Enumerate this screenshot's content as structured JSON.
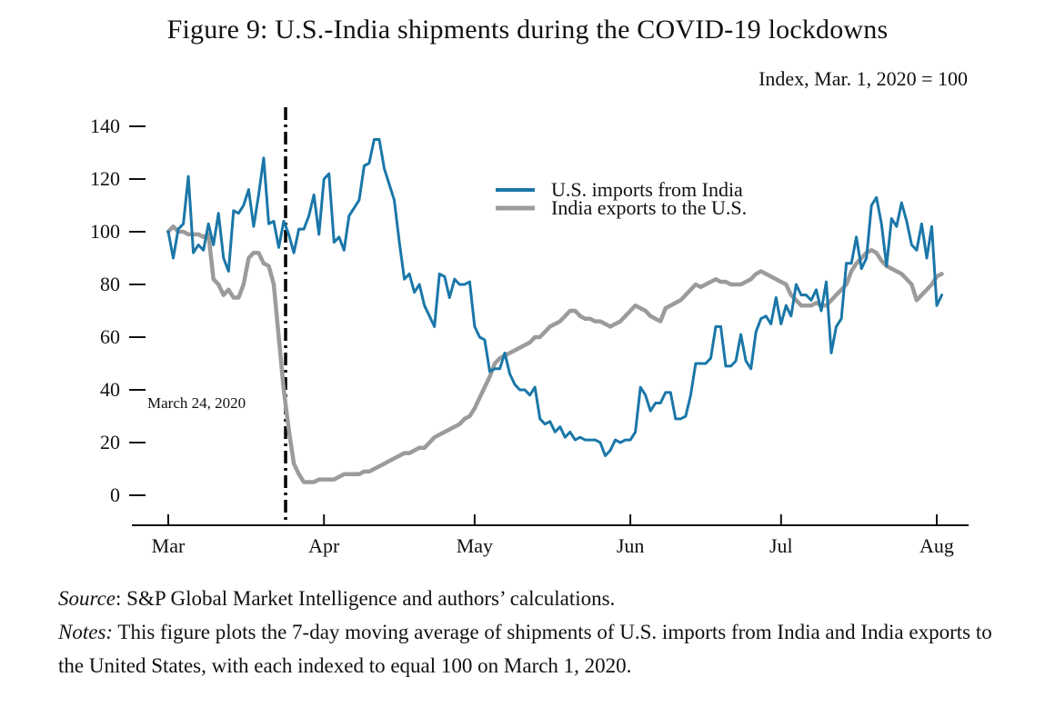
{
  "title": "Figure 9: U.S.-India shipments during the COVID-19 lockdowns",
  "subtitle": "Index, Mar. 1, 2020 = 100",
  "source_label": "Source",
  "source_text": ": S&P Global Market Intelligence and authors’ calculations.",
  "notes_label": "Notes:",
  "notes_text": " This figure plots the 7-day moving average of shipments of U.S. imports from India and India exports to the United States, with each indexed to equal 100 on March 1, 2020.",
  "colors": {
    "imports": "#1a77a8",
    "exports": "#9b9b9b",
    "axis": "#111111"
  },
  "chart_data": {
    "type": "line",
    "title": "Figure 9: U.S.-India shipments during the COVID-19 lockdowns",
    "subtitle": "Index, Mar. 1, 2020 = 100",
    "xlabel": "",
    "ylabel": "",
    "x_start": "2020-03-01",
    "x_ticks": [
      {
        "label": "Mar",
        "day": 0
      },
      {
        "label": "Apr",
        "day": 31
      },
      {
        "label": "May",
        "day": 61
      },
      {
        "label": "Jun",
        "day": 92
      },
      {
        "label": "Jul",
        "day": 122
      },
      {
        "label": "Aug",
        "day": 153
      }
    ],
    "xlim": [
      0,
      153
    ],
    "ylim": [
      0,
      140
    ],
    "yticks": [
      0,
      20,
      40,
      60,
      80,
      100,
      120,
      140
    ],
    "vline": {
      "day": 23,
      "label": "March 24, 2020"
    },
    "legend_position": "upper-center",
    "series": [
      {
        "name": "U.S. imports from India",
        "color": "#1a77a8",
        "values": [
          100,
          90,
          101,
          103,
          121,
          92,
          95,
          93,
          103,
          95,
          107,
          90,
          85,
          108,
          107,
          110,
          116,
          102,
          114,
          128,
          103,
          104,
          94,
          104,
          99,
          92,
          101,
          101,
          106,
          114,
          99,
          120,
          122,
          96,
          98,
          93,
          106,
          109,
          112,
          125,
          126,
          135,
          135,
          124,
          118,
          112,
          96,
          82,
          84,
          77,
          80,
          72,
          68,
          64,
          84,
          83,
          75,
          82,
          80,
          80,
          81,
          64,
          60,
          59,
          47,
          48,
          48,
          54,
          46,
          42,
          40,
          40,
          38,
          41,
          29,
          27,
          28,
          24,
          26,
          22,
          24,
          21,
          22,
          21,
          21,
          21,
          20,
          15,
          17,
          21,
          20,
          21,
          21,
          24,
          41,
          38,
          32,
          35,
          35,
          39,
          39,
          29,
          29,
          30,
          38,
          50,
          50,
          50,
          52,
          64,
          64,
          49,
          49,
          51,
          61,
          51,
          48,
          62,
          67,
          68,
          65,
          75,
          65,
          72,
          68,
          80,
          76,
          76,
          74,
          78,
          70,
          81,
          54,
          64,
          67,
          88,
          88,
          98,
          86,
          90,
          110,
          113,
          103,
          87,
          105,
          102,
          111,
          104,
          95,
          93,
          103,
          90,
          102,
          72,
          76
        ]
      },
      {
        "name": "India exports to the U.S.",
        "color": "#9b9b9b",
        "values": [
          100,
          102,
          100,
          100,
          99,
          99,
          99,
          98,
          99,
          82,
          80,
          76,
          78,
          75,
          75,
          80,
          90,
          92,
          92,
          88,
          87,
          80,
          60,
          40,
          25,
          12,
          8,
          5,
          5,
          5,
          6,
          6,
          6,
          6,
          7,
          8,
          8,
          8,
          8,
          9,
          9,
          10,
          11,
          12,
          13,
          14,
          15,
          16,
          16,
          17,
          18,
          18,
          20,
          22,
          23,
          24,
          25,
          26,
          27,
          29,
          30,
          33,
          37,
          41,
          45,
          50,
          52,
          53,
          54,
          55,
          56,
          57,
          58,
          60,
          60,
          62,
          64,
          65,
          66,
          68,
          70,
          70,
          68,
          67,
          67,
          66,
          66,
          65,
          64,
          65,
          66,
          68,
          70,
          72,
          71,
          70,
          68,
          67,
          66,
          71,
          72,
          73,
          74,
          76,
          78,
          80,
          79,
          80,
          81,
          82,
          81,
          81,
          80,
          80,
          80,
          81,
          82,
          84,
          85,
          84,
          83,
          82,
          81,
          80,
          76,
          74,
          72,
          72,
          72,
          73,
          72,
          72,
          74,
          76,
          78,
          80,
          85,
          88,
          90,
          92,
          93,
          92,
          89,
          87,
          86,
          85,
          84,
          82,
          80,
          74,
          76,
          78,
          80,
          83,
          84
        ]
      }
    ]
  }
}
